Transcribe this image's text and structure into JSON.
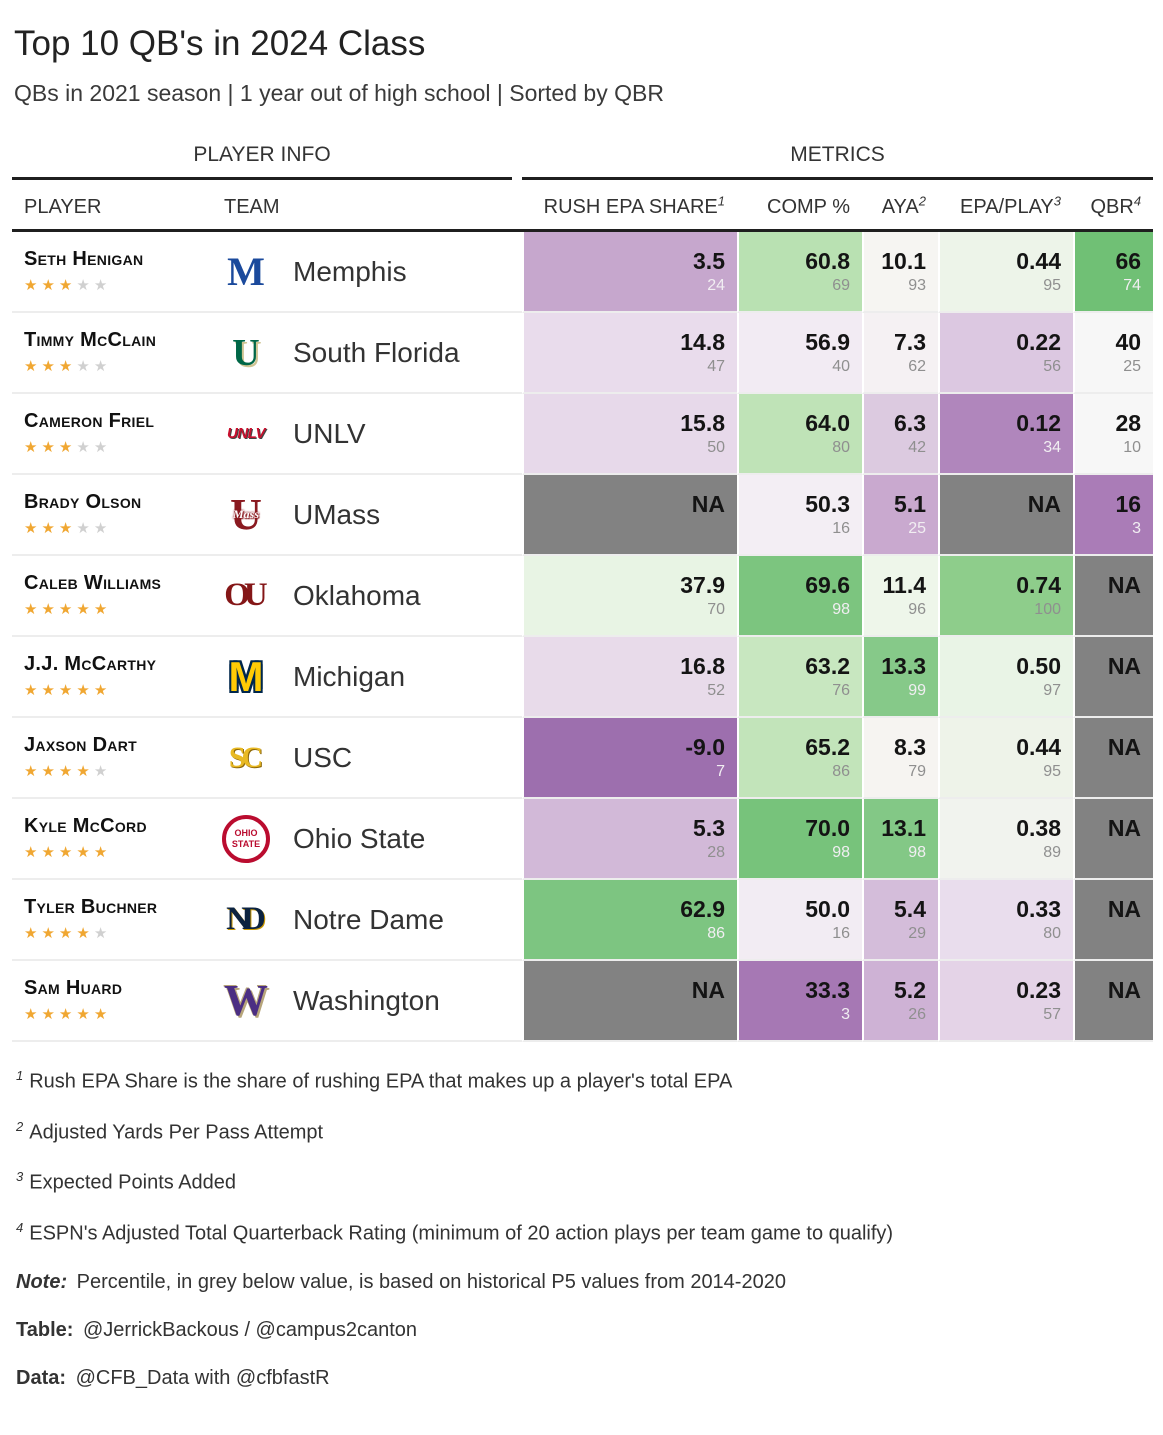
{
  "title": "Top 10 QB's in 2024 Class",
  "subtitle": "QBs in 2021 season | 1 year out of high school | Sorted by QBR",
  "header": {
    "spanner_player": "PLAYER INFO",
    "spanner_metrics": "METRICS",
    "columns": {
      "player": "PLAYER",
      "team": "TEAM",
      "rush": "RUSH EPA SHARE",
      "rush_sup": "1",
      "comp": "COMP %",
      "aya": "AYA",
      "aya_sup": "2",
      "epa": "EPA/PLAY",
      "epa_sup": "3",
      "qbr": "QBR",
      "qbr_sup": "4"
    }
  },
  "chart_data": {
    "type": "table",
    "columns": [
      "PLAYER",
      "TEAM",
      "RUSH EPA SHARE",
      "COMP %",
      "AYA",
      "EPA/PLAY",
      "QBR"
    ],
    "note": "Each metric cell shows value (top) and historical P5 percentile 2014-2020 (below, grey); cell color is diverging purple (low) to green (high); NA cells are grey",
    "rows": [
      {
        "player": "Seth Henigan",
        "stars": 3,
        "team": "Memphis",
        "logo": {
          "name": "memphis-logo",
          "class": "memphis",
          "text": "M"
        },
        "metrics": {
          "rush": {
            "v": "3.5",
            "p": "24",
            "bg": "#c6a7cd"
          },
          "comp": {
            "v": "60.8",
            "p": "69",
            "bg": "#b9e1b2"
          },
          "aya": {
            "v": "10.1",
            "p": "93",
            "bg": "#f6f5f2"
          },
          "epa": {
            "v": "0.44",
            "p": "95",
            "bg": "#edf4e9"
          },
          "qbr": {
            "v": "66",
            "p": "74",
            "bg": "#70c075"
          }
        }
      },
      {
        "player": "Timmy McClain",
        "stars": 3,
        "team": "South Florida",
        "logo": {
          "name": "south-florida-logo",
          "class": "usf",
          "text": "U"
        },
        "metrics": {
          "rush": {
            "v": "14.8",
            "p": "47",
            "bg": "#e9dcec"
          },
          "comp": {
            "v": "56.9",
            "p": "40",
            "bg": "#f2ebf3"
          },
          "aya": {
            "v": "7.3",
            "p": "62",
            "bg": "#f5f1f3"
          },
          "epa": {
            "v": "0.22",
            "p": "56",
            "bg": "#dcc8e1"
          },
          "qbr": {
            "v": "40",
            "p": "25",
            "bg": "#f7f7f7"
          }
        }
      },
      {
        "player": "Cameron Friel",
        "stars": 3,
        "team": "UNLV",
        "logo": {
          "name": "unlv-logo",
          "class": "unlv",
          "text": "UNLV"
        },
        "metrics": {
          "rush": {
            "v": "15.8",
            "p": "50",
            "bg": "#e7d9ea"
          },
          "comp": {
            "v": "64.0",
            "p": "80",
            "bg": "#bfe3b7"
          },
          "aya": {
            "v": "6.3",
            "p": "42",
            "bg": "#dccae0"
          },
          "epa": {
            "v": "0.12",
            "p": "34",
            "bg": "#b086bc"
          },
          "qbr": {
            "v": "28",
            "p": "10",
            "bg": "#f7f7f7"
          }
        }
      },
      {
        "player": "Brady Olson",
        "stars": 3,
        "team": "UMass",
        "logo": {
          "name": "umass-logo",
          "class": "umass",
          "text": "U",
          "sub": "Mass"
        },
        "metrics": {
          "rush": {
            "v": "NA",
            "p": "",
            "bg": "#828282"
          },
          "comp": {
            "v": "50.3",
            "p": "16",
            "bg": "#f3eef4"
          },
          "aya": {
            "v": "5.1",
            "p": "25",
            "bg": "#c9a9cf"
          },
          "epa": {
            "v": "NA",
            "p": "",
            "bg": "#828282"
          },
          "qbr": {
            "v": "16",
            "p": "3",
            "bg": "#aa7cb7"
          }
        }
      },
      {
        "player": "Caleb Williams",
        "stars": 5,
        "team": "Oklahoma",
        "logo": {
          "name": "oklahoma-logo",
          "class": "oklahoma",
          "text": "OU"
        },
        "metrics": {
          "rush": {
            "v": "37.9",
            "p": "70",
            "bg": "#e8f4e4"
          },
          "comp": {
            "v": "69.6",
            "p": "98",
            "bg": "#7cc57f"
          },
          "aya": {
            "v": "11.4",
            "p": "96",
            "bg": "#eef6ea"
          },
          "epa": {
            "v": "0.74",
            "p": "100",
            "bg": "#8ecd8b"
          },
          "qbr": {
            "v": "NA",
            "p": "",
            "bg": "#828282"
          }
        }
      },
      {
        "player": "J.J. McCarthy",
        "stars": 5,
        "team": "Michigan",
        "logo": {
          "name": "michigan-logo",
          "class": "michigan",
          "text": "M"
        },
        "metrics": {
          "rush": {
            "v": "16.8",
            "p": "52",
            "bg": "#e8dbea"
          },
          "comp": {
            "v": "63.2",
            "p": "76",
            "bg": "#c8e7c0"
          },
          "aya": {
            "v": "13.3",
            "p": "99",
            "bg": "#86c989"
          },
          "epa": {
            "v": "0.50",
            "p": "97",
            "bg": "#e9f4e6"
          },
          "qbr": {
            "v": "NA",
            "p": "",
            "bg": "#828282"
          }
        }
      },
      {
        "player": "Jaxson Dart",
        "stars": 4,
        "team": "USC",
        "logo": {
          "name": "usc-logo",
          "class": "usc",
          "text": "SC"
        },
        "metrics": {
          "rush": {
            "v": "-9.0",
            "p": "7",
            "bg": "#9d6fae"
          },
          "comp": {
            "v": "65.2",
            "p": "86",
            "bg": "#c2e4ba"
          },
          "aya": {
            "v": "8.3",
            "p": "79",
            "bg": "#f6f4f1"
          },
          "epa": {
            "v": "0.44",
            "p": "95",
            "bg": "#eef3e9"
          },
          "qbr": {
            "v": "NA",
            "p": "",
            "bg": "#828282"
          }
        }
      },
      {
        "player": "Kyle McCord",
        "stars": 5,
        "team": "Ohio State",
        "logo": {
          "name": "ohio-state-logo",
          "class": "ohiostate",
          "text": "OHIO STATE"
        },
        "metrics": {
          "rush": {
            "v": "5.3",
            "p": "28",
            "bg": "#d2b9d8"
          },
          "comp": {
            "v": "70.0",
            "p": "98",
            "bg": "#77c37b"
          },
          "aya": {
            "v": "13.1",
            "p": "98",
            "bg": "#83c886"
          },
          "epa": {
            "v": "0.38",
            "p": "89",
            "bg": "#f1f3ee"
          },
          "qbr": {
            "v": "NA",
            "p": "",
            "bg": "#828282"
          }
        }
      },
      {
        "player": "Tyler Buchner",
        "stars": 4,
        "team": "Notre Dame",
        "logo": {
          "name": "notre-dame-logo",
          "class": "notredame",
          "text": "ND"
        },
        "metrics": {
          "rush": {
            "v": "62.9",
            "p": "86",
            "bg": "#7dc581"
          },
          "comp": {
            "v": "50.0",
            "p": "16",
            "bg": "#f2ecf3"
          },
          "aya": {
            "v": "5.4",
            "p": "29",
            "bg": "#d4bdda"
          },
          "epa": {
            "v": "0.33",
            "p": "80",
            "bg": "#e9dded"
          },
          "qbr": {
            "v": "NA",
            "p": "",
            "bg": "#828282"
          }
        }
      },
      {
        "player": "Sam Huard",
        "stars": 5,
        "team": "Washington",
        "logo": {
          "name": "washington-logo",
          "class": "washington",
          "text": "W"
        },
        "metrics": {
          "rush": {
            "v": "NA",
            "p": "",
            "bg": "#828282"
          },
          "comp": {
            "v": "33.3",
            "p": "3",
            "bg": "#a678b4"
          },
          "aya": {
            "v": "5.2",
            "p": "26",
            "bg": "#ceb2d5"
          },
          "epa": {
            "v": "0.23",
            "p": "57",
            "bg": "#e4d3e7"
          },
          "qbr": {
            "v": "NA",
            "p": "",
            "bg": "#828282"
          }
        }
      }
    ]
  },
  "footnotes": [
    {
      "sup": "1",
      "text": "Rush EPA Share is the share of rushing EPA that makes up a player's total EPA"
    },
    {
      "sup": "2",
      "text": "Adjusted Yards Per Pass Attempt"
    },
    {
      "sup": "3",
      "text": "Expected Points Added"
    },
    {
      "sup": "4",
      "text": "ESPN's Adjusted Total Quarterback Rating (minimum of 20 action plays per team game to qualify)"
    }
  ],
  "credits": [
    {
      "prefix": "Note:",
      "italic": true,
      "text": "Percentile, in grey below value, is based on historical P5 values from 2014-2020"
    },
    {
      "prefix": "Table:",
      "italic": false,
      "text": "@JerrickBackous / @campus2canton"
    },
    {
      "prefix": "Data:",
      "italic": false,
      "text": "@CFB_Data with @cfbfastR"
    }
  ],
  "colors": {
    "na_cell": "#828282",
    "star_filled": "#f0a732",
    "star_empty": "#d0d0d0",
    "pct_grey": "#8f8f8f",
    "pct_light": "#f1eef2",
    "header_line": "#1f1f1f"
  }
}
